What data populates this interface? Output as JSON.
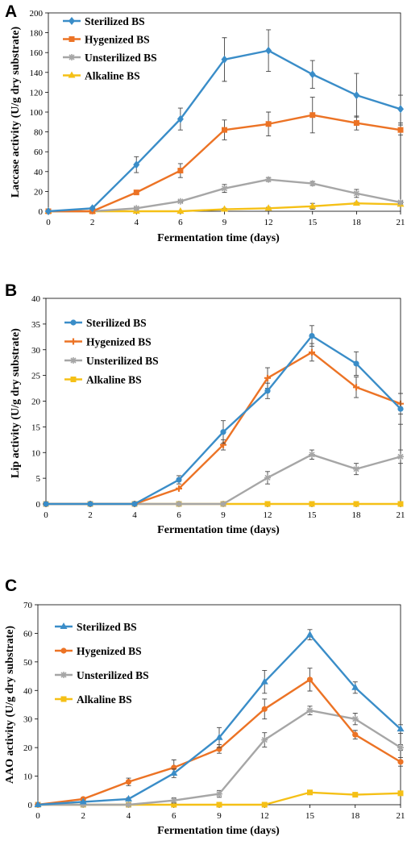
{
  "colors": {
    "sterilized": "#3A8DC8",
    "hygenized": "#EC7325",
    "unsterilized": "#A6A6A6",
    "alkaline": "#F5C016"
  },
  "chart_data": [
    {
      "panel": "A",
      "type": "line",
      "xlabel": "Fermentation  time (days)",
      "ylabel": "Laccase activity  (U/g dry substrate)",
      "x": [
        0,
        2,
        4,
        6,
        9,
        12,
        15,
        18,
        21
      ],
      "ylim": [
        0,
        200
      ],
      "yticks": [
        0,
        20,
        40,
        60,
        80,
        100,
        120,
        140,
        160,
        180,
        200
      ],
      "legend_position": "top-left",
      "series": [
        {
          "name": "Sterilized BS",
          "color": "#3A8DC8",
          "marker": "diamond",
          "values": [
            0,
            3,
            47,
            93,
            153,
            162,
            138,
            117,
            103
          ],
          "errors": [
            0,
            1,
            8,
            11,
            22,
            21,
            14,
            22,
            14
          ]
        },
        {
          "name": "Hygenized BS",
          "color": "#EC7325",
          "marker": "square",
          "values": [
            0,
            0,
            19,
            41,
            82,
            88,
            97,
            89,
            82
          ],
          "errors": [
            0,
            0,
            2,
            7,
            10,
            12,
            18,
            7,
            5
          ]
        },
        {
          "name": "Unsterilized BS",
          "color": "#A6A6A6",
          "marker": "star",
          "values": [
            0,
            0,
            3,
            10,
            23,
            32,
            28,
            18,
            9
          ],
          "errors": [
            0,
            0,
            1,
            1,
            4,
            2,
            2,
            4,
            1
          ]
        },
        {
          "name": "Alkaline BS",
          "color": "#F5C016",
          "marker": "triangle",
          "values": [
            0,
            0,
            0,
            0,
            2,
            3,
            5,
            8,
            7
          ],
          "errors": [
            0,
            0,
            0,
            0,
            1,
            1,
            3,
            1,
            1
          ]
        }
      ]
    },
    {
      "panel": "B",
      "type": "line",
      "xlabel": "Fermentation  time (days)",
      "ylabel": "Lip activity (U/g dry substrate)",
      "x": [
        0,
        2,
        4,
        6,
        9,
        12,
        15,
        18,
        21
      ],
      "ylim": [
        0,
        40
      ],
      "yticks": [
        0,
        5,
        10,
        15,
        20,
        25,
        30,
        35,
        40
      ],
      "legend_position": "top-left",
      "series": [
        {
          "name": "Sterilized BS",
          "color": "#3A8DC8",
          "marker": "circle",
          "values": [
            0,
            0,
            0,
            4.7,
            14,
            22,
            32.7,
            27.3,
            18.5
          ],
          "errors": [
            0,
            0,
            0,
            0.8,
            2.2,
            1.5,
            2.0,
            2.3,
            3.0
          ]
        },
        {
          "name": "Hygenized BS",
          "color": "#EC7325",
          "marker": "plus",
          "values": [
            0,
            0,
            0,
            3,
            11.5,
            24.5,
            29.5,
            22.7,
            19.5
          ],
          "errors": [
            0,
            0,
            0,
            0,
            1.0,
            2.0,
            1.7,
            2.0,
            2.0
          ]
        },
        {
          "name": "Unsterilized  BS",
          "color": "#A6A6A6",
          "marker": "star",
          "values": [
            0,
            0,
            0,
            0,
            0,
            5.1,
            9.6,
            6.8,
            9.2
          ],
          "errors": [
            0,
            0,
            0,
            0,
            0,
            1.2,
            0.9,
            1.1,
            1.3
          ]
        },
        {
          "name": "Alkaline BS",
          "color": "#F5C016",
          "marker": "square",
          "values": [
            0,
            0,
            0,
            0,
            0,
            0,
            0,
            0,
            0
          ],
          "errors": [
            0,
            0,
            0,
            0,
            0,
            0,
            0,
            0,
            0
          ]
        }
      ]
    },
    {
      "panel": "C",
      "type": "line",
      "xlabel": "Fermentation  time (days)",
      "ylabel": "AAO activity  (U/g dry substrate)",
      "x": [
        0,
        2,
        4,
        6,
        9,
        12,
        15,
        18,
        21
      ],
      "ylim": [
        0,
        70
      ],
      "yticks": [
        0,
        10,
        20,
        30,
        40,
        50,
        60,
        70
      ],
      "legend_position": "top-left",
      "series": [
        {
          "name": "Sterilized BS",
          "color": "#3A8DC8",
          "marker": "triangle",
          "values": [
            0,
            1,
            2,
            11,
            23.5,
            43,
            59.5,
            41,
            26.5
          ],
          "errors": [
            0,
            0.3,
            0.5,
            1.5,
            3.5,
            4.0,
            1.8,
            2.0,
            1.5
          ]
        },
        {
          "name": "Hygenized BS",
          "color": "#EC7325",
          "marker": "circle",
          "values": [
            0,
            2,
            8,
            13,
            19.5,
            33.5,
            43.8,
            24.5,
            15
          ],
          "errors": [
            0,
            0.5,
            1.3,
            2.7,
            1.5,
            3.5,
            4.0,
            1.5,
            1.5
          ]
        },
        {
          "name": "Unsterilized BS",
          "color": "#A6A6A6",
          "marker": "star",
          "values": [
            0,
            0,
            0,
            1.5,
            3.8,
            22.7,
            33,
            30,
            20
          ],
          "errors": [
            0,
            0,
            0,
            0.9,
            1.2,
            2.5,
            1.5,
            2.0,
            1.0
          ]
        },
        {
          "name": "Alkaline BS",
          "color": "#F5C016",
          "marker": "square",
          "values": [
            0,
            0,
            0,
            0,
            0,
            0,
            4.3,
            3.5,
            4
          ],
          "errors": [
            0,
            0,
            0,
            0,
            0,
            0,
            0.5,
            0.3,
            0.5
          ]
        }
      ]
    }
  ]
}
